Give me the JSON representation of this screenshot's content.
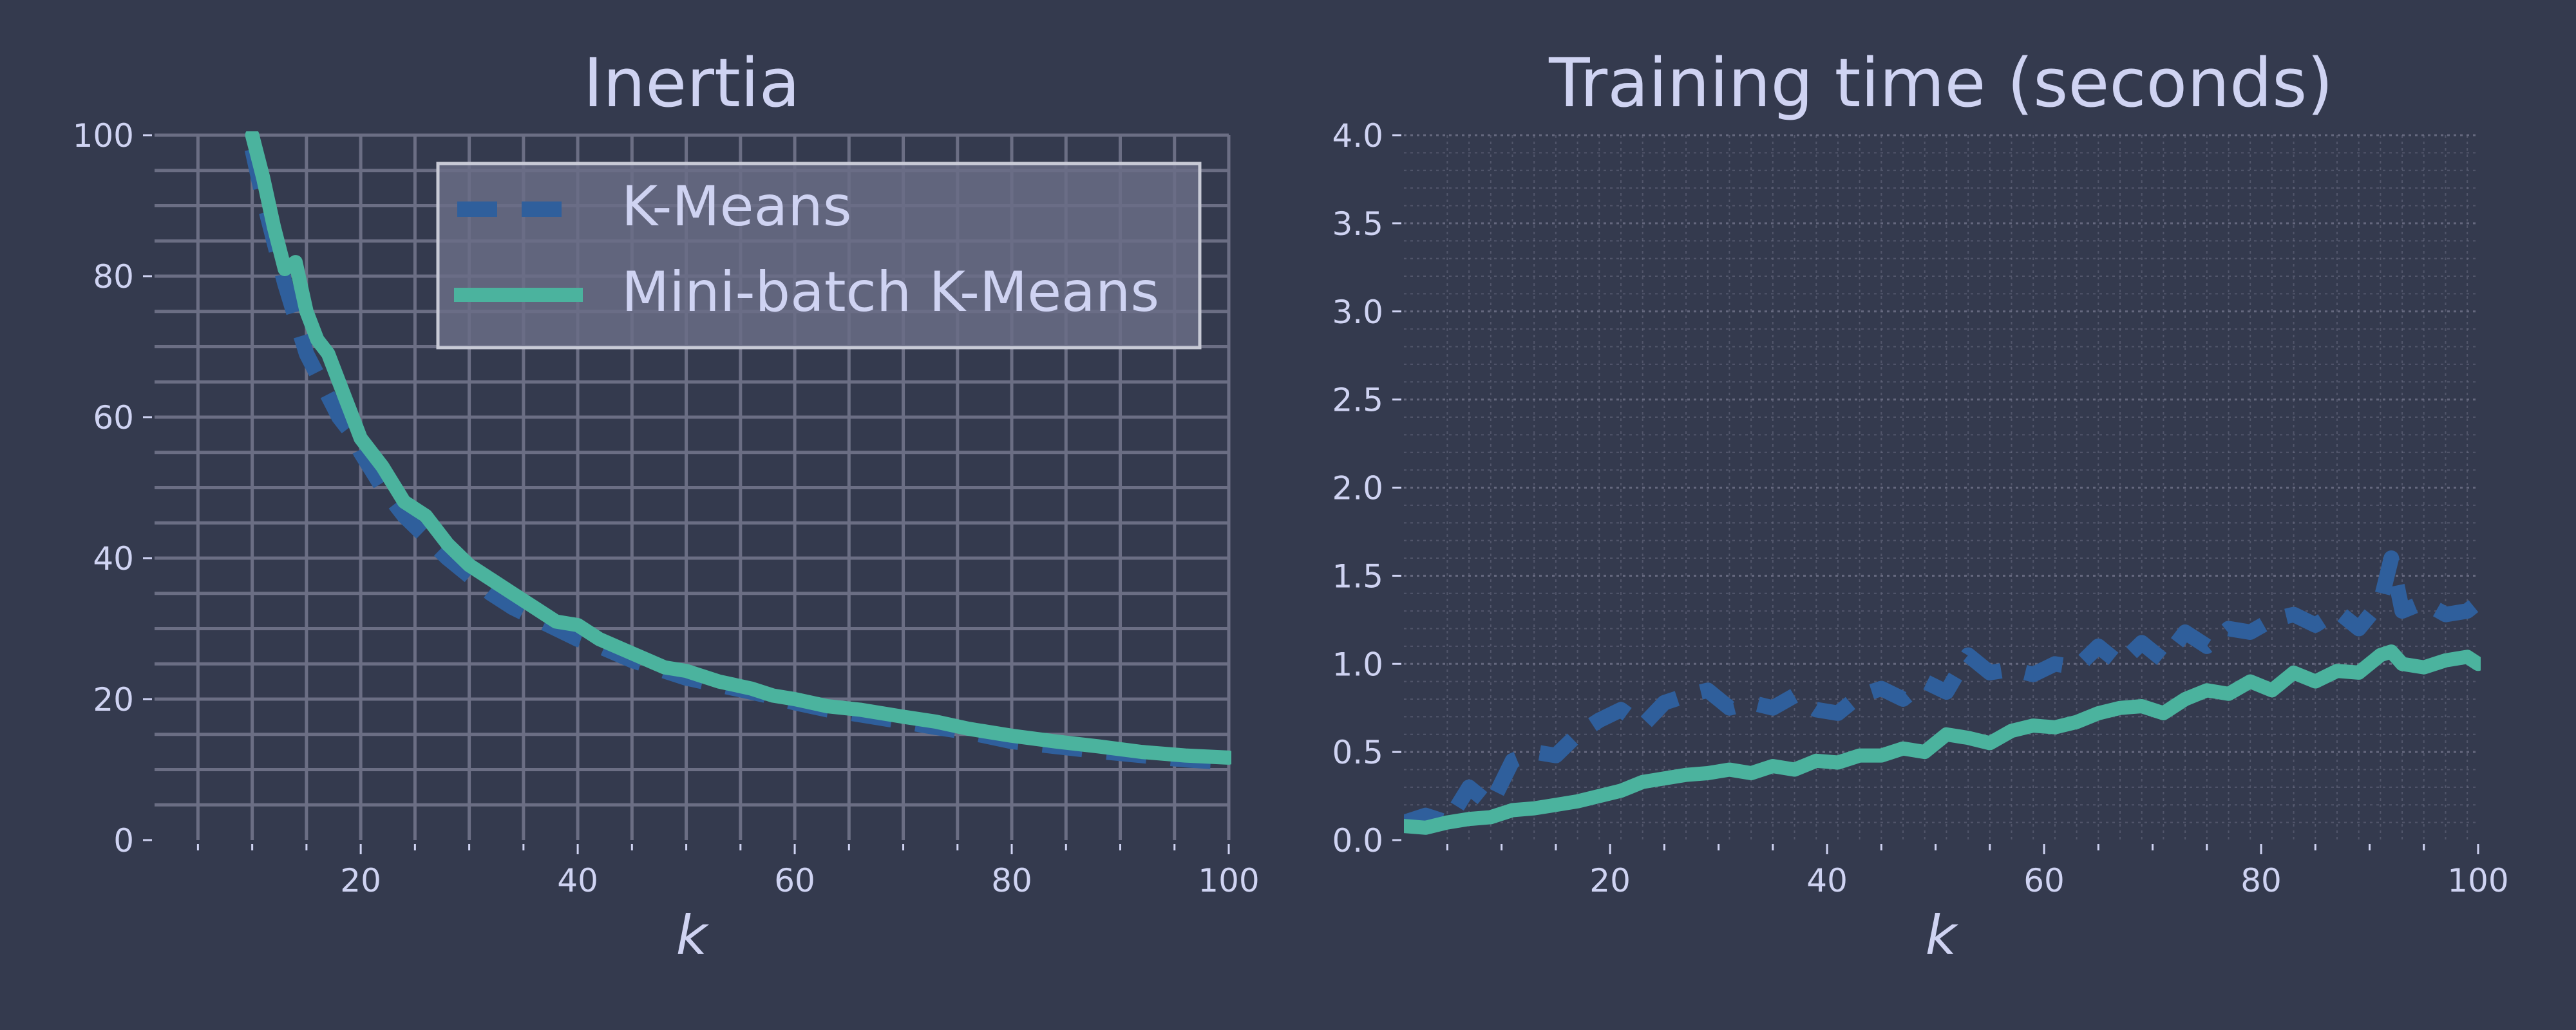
{
  "colors": {
    "background": "#343a4e",
    "text": "#cfd3f2",
    "grid": "#6b6e84",
    "kmeans": "#2f5f9c",
    "minibatch": "#4bb39e",
    "legend_bg": "#6a6d86",
    "legend_border": "#c8cad6"
  },
  "chart_data": [
    {
      "type": "line",
      "title": "Inertia",
      "xlabel": "k",
      "ylabel": "",
      "xlim": [
        1,
        100
      ],
      "ylim": [
        0,
        100
      ],
      "xticks": [
        20,
        40,
        60,
        80,
        100
      ],
      "yticks": [
        0,
        20,
        40,
        60,
        80,
        100
      ],
      "grid": "on (major and minor)",
      "legend": "top-right",
      "x": [
        10,
        11,
        12,
        13,
        14,
        15,
        16,
        17,
        18,
        19,
        20,
        22,
        24,
        26,
        28,
        30,
        32,
        34,
        36,
        38,
        40,
        42,
        45,
        48,
        50,
        53,
        56,
        58,
        60,
        63,
        66,
        70,
        73,
        76,
        80,
        84,
        88,
        92,
        96,
        100
      ],
      "series": [
        {
          "name": "K-Means",
          "style": "dashed",
          "values": [
            98,
            91,
            85,
            79,
            74,
            69,
            66,
            63,
            60,
            58,
            55,
            50,
            46,
            43,
            40,
            37.5,
            35,
            33,
            31.5,
            30,
            28.5,
            27.5,
            25.5,
            24,
            23,
            22,
            21,
            20.3,
            19.5,
            18.5,
            17.8,
            16.8,
            16,
            15.3,
            14,
            13.3,
            12.6,
            12,
            11.4,
            11
          ]
        },
        {
          "name": "Mini-batch K-Means",
          "style": "solid",
          "values": [
            100,
            94,
            87,
            81,
            82,
            75,
            71,
            69,
            65,
            61,
            57,
            53,
            48,
            46,
            42,
            39,
            37,
            35,
            33,
            31,
            30.5,
            28.5,
            26.5,
            24.5,
            24,
            22.5,
            21.5,
            20.5,
            20,
            19,
            18.5,
            17.5,
            16.8,
            15.8,
            14.8,
            14,
            13.3,
            12.5,
            12,
            11.7
          ]
        }
      ]
    },
    {
      "type": "line",
      "title": "Training time (seconds)",
      "xlabel": "k",
      "ylabel": "",
      "xlim": [
        1,
        100
      ],
      "ylim": [
        0,
        4
      ],
      "xticks": [
        20,
        40,
        60,
        80,
        100
      ],
      "yticks": [
        "0.0",
        "0.5",
        "1.0",
        "1.5",
        "2.0",
        "2.5",
        "3.0",
        "3.5",
        "4.0"
      ],
      "grid": "on (major and minor, dotted)",
      "legend": "none",
      "x": [
        1,
        3,
        5,
        7,
        9,
        11,
        13,
        15,
        17,
        19,
        21,
        23,
        25,
        27,
        29,
        31,
        33,
        35,
        37,
        39,
        41,
        43,
        45,
        47,
        49,
        51,
        53,
        55,
        57,
        59,
        61,
        63,
        65,
        67,
        69,
        71,
        73,
        75,
        77,
        79,
        81,
        83,
        85,
        87,
        89,
        91,
        92,
        93,
        95,
        97,
        99,
        100
      ],
      "series": [
        {
          "name": "K-Means",
          "style": "dashed",
          "values": [
            0.1,
            0.14,
            0.1,
            0.3,
            0.2,
            0.45,
            0.5,
            0.48,
            0.6,
            0.68,
            0.74,
            0.65,
            0.78,
            0.82,
            0.85,
            0.75,
            0.78,
            0.75,
            0.82,
            0.74,
            0.72,
            0.82,
            0.86,
            0.8,
            0.9,
            0.84,
            1.05,
            0.95,
            0.97,
            0.94,
            1.0,
            0.98,
            1.1,
            1.0,
            1.12,
            1.02,
            1.18,
            1.1,
            1.2,
            1.18,
            1.25,
            1.28,
            1.22,
            1.3,
            1.2,
            1.35,
            1.6,
            1.3,
            1.35,
            1.28,
            1.3,
            1.35
          ]
        },
        {
          "name": "Mini-batch K-Means",
          "style": "solid",
          "values": [
            0.08,
            0.07,
            0.1,
            0.12,
            0.13,
            0.17,
            0.18,
            0.2,
            0.22,
            0.25,
            0.28,
            0.33,
            0.35,
            0.37,
            0.38,
            0.4,
            0.38,
            0.42,
            0.4,
            0.45,
            0.44,
            0.48,
            0.48,
            0.52,
            0.5,
            0.6,
            0.58,
            0.55,
            0.62,
            0.65,
            0.64,
            0.67,
            0.72,
            0.75,
            0.76,
            0.72,
            0.8,
            0.85,
            0.83,
            0.9,
            0.85,
            0.95,
            0.9,
            0.96,
            0.95,
            1.05,
            1.07,
            1.0,
            0.98,
            1.02,
            1.04,
            1.0
          ]
        }
      ]
    }
  ]
}
